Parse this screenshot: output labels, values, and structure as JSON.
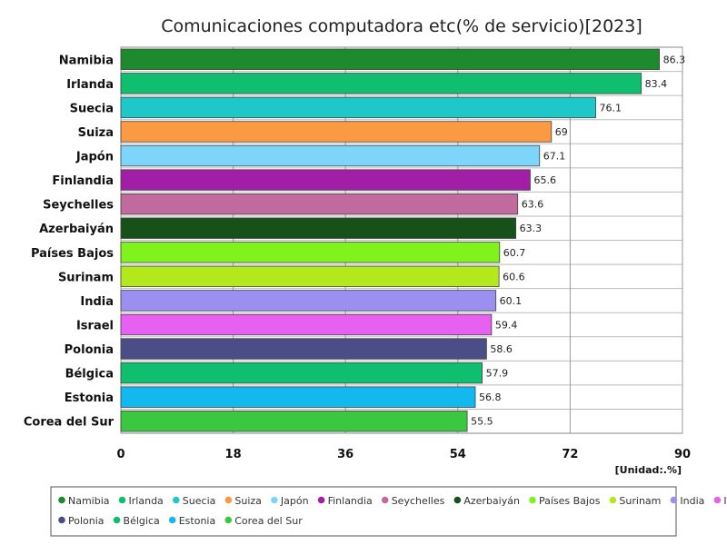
{
  "chart_data": {
    "type": "bar",
    "orientation": "horizontal",
    "title": "Comunicaciones computadora etc(% de servicio)[2023]",
    "unit_label": "[Unidad:.%]",
    "categories": [
      "Namibia",
      "Irlanda",
      "Suecia",
      "Suiza",
      "Japón",
      "Finlandia",
      "Seychelles",
      "Azerbaiyán",
      "Países Bajos",
      "Surinam",
      "India",
      "Israel",
      "Polonia",
      "Bélgica",
      "Estonia",
      "Corea del Sur"
    ],
    "values": [
      86.3,
      83.4,
      76.1,
      69,
      67.1,
      65.6,
      63.6,
      63.3,
      60.7,
      60.6,
      60.1,
      59.4,
      58.6,
      57.9,
      56.8,
      55.5
    ],
    "value_labels": [
      "86.3",
      "83.4",
      "76.1",
      "69",
      "67.1",
      "65.6",
      "63.6",
      "63.3",
      "60.7",
      "60.6",
      "60.1",
      "59.4",
      "58.6",
      "57.9",
      "56.8",
      "55.5"
    ],
    "colors": [
      "#1e8a2e",
      "#0fbf6f",
      "#1ec8c8",
      "#fa9a42",
      "#7dd5fa",
      "#a21ea6",
      "#c06a9e",
      "#17511a",
      "#80f21c",
      "#b2e81c",
      "#9b8ff0",
      "#e660f2",
      "#4b4d86",
      "#0fbf6f",
      "#13b8ef",
      "#3cc740"
    ],
    "xlim": [
      0,
      90
    ],
    "xticks": [
      "0",
      "18",
      "36",
      "54",
      "72",
      "90"
    ],
    "xtick_values": [
      0,
      18,
      36,
      54,
      72,
      90
    ],
    "grid": true,
    "legend_position": "bottom"
  }
}
